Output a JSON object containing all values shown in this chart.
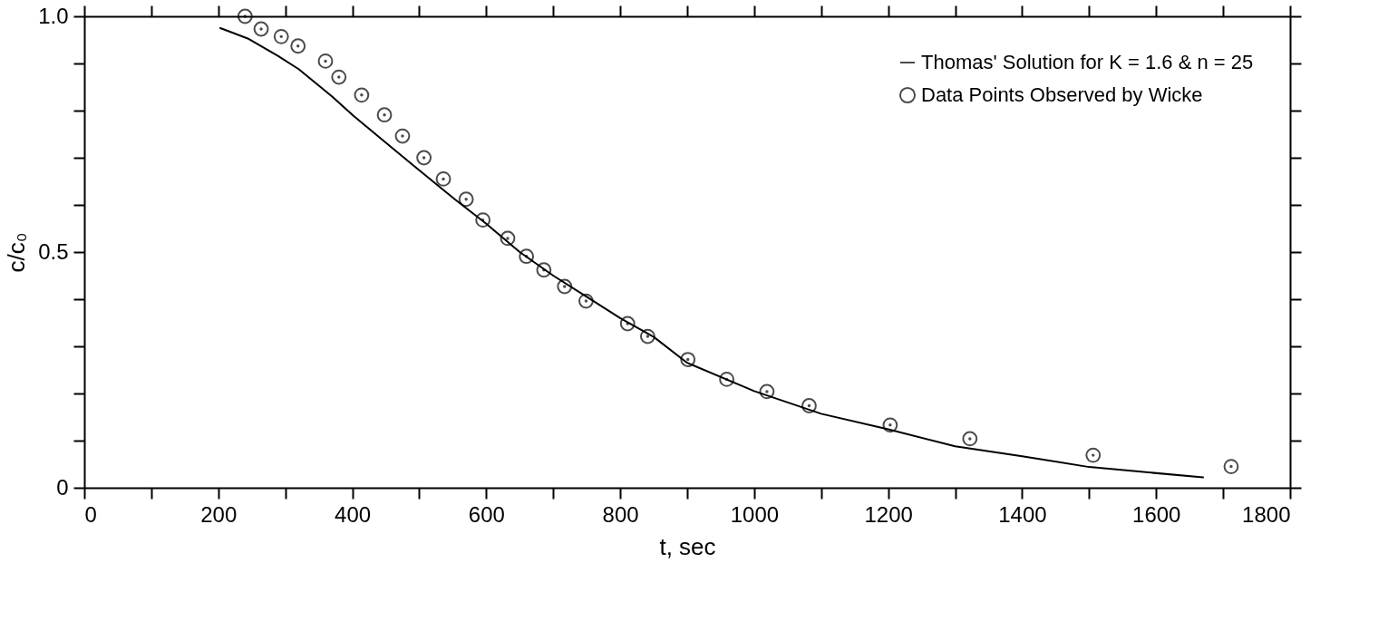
{
  "chart_data": {
    "type": "scatter",
    "xlabel": "t, sec",
    "ylabel": "c/c₀",
    "xlim": [
      0,
      1800
    ],
    "ylim": [
      0,
      1.0
    ],
    "xticks": [
      0,
      {
        "value": 100,
        "label": null
      },
      200,
      {
        "value": 300,
        "label": null
      },
      400,
      {
        "value": 500,
        "label": null
      },
      600,
      {
        "value": 700,
        "label": null
      },
      800,
      {
        "value": 900,
        "label": null
      },
      1000,
      {
        "value": 1100,
        "label": null
      },
      1200,
      {
        "value": 1300,
        "label": null
      },
      1400,
      {
        "value": 1500,
        "label": null
      },
      1600,
      {
        "value": 1700,
        "label": null
      },
      1800
    ],
    "yticks": [
      0,
      {
        "value": 0.1,
        "label": null
      },
      {
        "value": 0.2,
        "label": null
      },
      {
        "value": 0.3,
        "label": null
      },
      {
        "value": 0.4,
        "label": null
      },
      0.5,
      {
        "value": 0.6,
        "label": null
      },
      {
        "value": 0.7,
        "label": null
      },
      {
        "value": 0.8,
        "label": null
      },
      {
        "value": 0.9,
        "label": null
      },
      {
        "value": 1.0,
        "label": "1.0"
      }
    ],
    "grid": false,
    "legend": "top right",
    "series": [
      {
        "name": "Thomas' Solution for K = 1.6 & n = 25",
        "type": "line",
        "color": "#000000",
        "marker": "none",
        "line_style": "solid",
        "x": [
          203,
          244,
          289,
          320,
          370,
          401,
          445,
          490,
          553,
          600,
          650,
          700,
          750,
          800,
          850,
          900,
          1000,
          1100,
          1200,
          1300,
          1400,
          1500,
          1670
        ],
        "values": [
          0.975,
          0.953,
          0.916,
          0.888,
          0.83,
          0.79,
          0.738,
          0.685,
          0.612,
          0.56,
          0.5,
          0.45,
          0.405,
          0.36,
          0.32,
          0.265,
          0.205,
          0.157,
          0.124,
          0.088,
          0.067,
          0.044,
          0.022
        ]
      },
      {
        "name": "Data Points Observed by Wicke",
        "color": "#000000",
        "marker": "circle",
        "x": [
          240,
          264,
          294,
          319,
          360,
          380,
          414,
          448,
          475,
          507,
          536,
          570,
          595,
          632,
          660,
          686,
          717,
          749,
          811,
          841,
          901,
          959,
          1019,
          1082,
          1203,
          1322,
          1506,
          1712
        ],
        "values": [
          1.0,
          0.973,
          0.957,
          0.937,
          0.905,
          0.871,
          0.833,
          0.791,
          0.746,
          0.7,
          0.655,
          0.612,
          0.568,
          0.529,
          0.491,
          0.462,
          0.427,
          0.396,
          0.348,
          0.321,
          0.272,
          0.23,
          0.204,
          0.174,
          0.133,
          0.104,
          0.069,
          0.045
        ]
      }
    ]
  }
}
